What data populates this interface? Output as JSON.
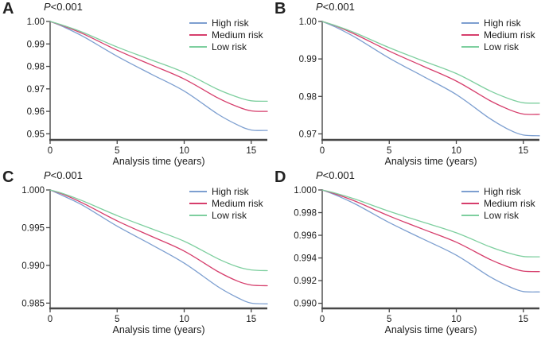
{
  "figure": {
    "background": "#ffffff",
    "text_color": "#1c1c1c",
    "axis_color": "#474747",
    "series_colors": {
      "high_risk": "#7d9fd0",
      "medium_risk": "#d63e6c",
      "low_risk": "#7ecf9f"
    }
  },
  "chart_data": [
    {
      "type": "line",
      "panel_label": "A",
      "pvalue_text": "P<0.001",
      "pvalue_italic": "P",
      "pvalue_rest": "<0.001",
      "xlabel": "Analysis time (years)",
      "legend_position": "top-right",
      "grid": false,
      "xlim": [
        0,
        16.2
      ],
      "ylim": [
        0.9473,
        1.0
      ],
      "xticks": [
        {
          "v": 0,
          "label": "0"
        },
        {
          "v": 5,
          "label": "5"
        },
        {
          "v": 10,
          "label": "10"
        },
        {
          "v": 15,
          "label": "15"
        }
      ],
      "yticks": [
        {
          "v": 1.0,
          "label": "1.00"
        },
        {
          "v": 0.99,
          "label": "0.99"
        },
        {
          "v": 0.98,
          "label": "0.98"
        },
        {
          "v": 0.97,
          "label": "0.97"
        },
        {
          "v": 0.96,
          "label": "0.96"
        },
        {
          "v": 0.95,
          "label": "0.95"
        }
      ],
      "x": [
        0,
        1,
        2.5,
        5,
        7.5,
        10,
        12.5,
        14,
        15,
        16.2
      ],
      "series": [
        {
          "name": "High risk",
          "color": "#7d9fd0",
          "y": [
            1.0,
            0.9976,
            0.9932,
            0.9845,
            0.9767,
            0.969,
            0.9588,
            0.9539,
            0.9517,
            0.9515
          ]
        },
        {
          "name": "Medium risk",
          "color": "#d63e6c",
          "y": [
            1.0,
            0.998,
            0.9944,
            0.9872,
            0.9808,
            0.9744,
            0.966,
            0.962,
            0.9602,
            0.96
          ]
        },
        {
          "name": "Low risk",
          "color": "#7ecf9f",
          "y": [
            1.0,
            0.9982,
            0.995,
            0.9886,
            0.983,
            0.9773,
            0.9698,
            0.9663,
            0.9647,
            0.9645
          ]
        }
      ]
    },
    {
      "type": "line",
      "panel_label": "B",
      "pvalue_text": "P<0.001",
      "pvalue_italic": "P",
      "pvalue_rest": "<0.001",
      "xlabel": "Analysis time (years)",
      "legend_position": "top-right",
      "grid": false,
      "xlim": [
        0,
        16.2
      ],
      "ylim": [
        0.9684,
        1.0
      ],
      "xticks": [
        {
          "v": 0,
          "label": "0"
        },
        {
          "v": 5,
          "label": "5"
        },
        {
          "v": 10,
          "label": "10"
        },
        {
          "v": 15,
          "label": "15"
        }
      ],
      "yticks": [
        {
          "v": 1.0,
          "label": "1.00"
        },
        {
          "v": 0.99,
          "label": "0.99"
        },
        {
          "v": 0.98,
          "label": "0.98"
        },
        {
          "v": 0.97,
          "label": "0.97"
        }
      ],
      "x": [
        0,
        1,
        2.5,
        5,
        7.5,
        10,
        12.5,
        14,
        15,
        16.2
      ],
      "series": [
        {
          "name": "High risk",
          "color": "#7d9fd0",
          "y": [
            1.0,
            0.9985,
            0.9957,
            0.9902,
            0.9854,
            0.9805,
            0.9741,
            0.971,
            0.9697,
            0.9695
          ]
        },
        {
          "name": "Medium risk",
          "color": "#d63e6c",
          "y": [
            1.0,
            0.9988,
            0.9965,
            0.9921,
            0.9881,
            0.9841,
            0.9789,
            0.9764,
            0.9753,
            0.9752
          ]
        },
        {
          "name": "Low risk",
          "color": "#7ecf9f",
          "y": [
            1.0,
            0.9989,
            0.9969,
            0.993,
            0.9895,
            0.9861,
            0.9815,
            0.9793,
            0.9783,
            0.9782
          ]
        }
      ]
    },
    {
      "type": "line",
      "panel_label": "C",
      "pvalue_text": "P<0.001",
      "pvalue_italic": "P",
      "pvalue_rest": "<0.001",
      "xlabel": "Analysis time (years)",
      "legend_position": "top-right",
      "grid": false,
      "xlim": [
        0,
        16.2
      ],
      "ylim": [
        0.9843,
        1.0
      ],
      "xticks": [
        {
          "v": 0,
          "label": "0"
        },
        {
          "v": 5,
          "label": "5"
        },
        {
          "v": 10,
          "label": "10"
        },
        {
          "v": 15,
          "label": "15"
        }
      ],
      "yticks": [
        {
          "v": 1.0,
          "label": "1.000"
        },
        {
          "v": 0.995,
          "label": "0.995"
        },
        {
          "v": 0.99,
          "label": "0.990"
        },
        {
          "v": 0.985,
          "label": "0.985"
        }
      ],
      "x": [
        0,
        1,
        2.5,
        5,
        7.5,
        10,
        12.5,
        14,
        15,
        16.2
      ],
      "series": [
        {
          "name": "High risk",
          "color": "#7d9fd0",
          "y": [
            1.0,
            0.9992,
            0.9979,
            0.9952,
            0.9928,
            0.9903,
            0.9872,
            0.9857,
            0.985,
            0.9849
          ]
        },
        {
          "name": "Medium risk",
          "color": "#d63e6c",
          "y": [
            1.0,
            0.9994,
            0.9982,
            0.9959,
            0.9939,
            0.9919,
            0.9892,
            0.9879,
            0.9874,
            0.9873
          ]
        },
        {
          "name": "Low risk",
          "color": "#7ecf9f",
          "y": [
            1.0,
            0.9995,
            0.9985,
            0.9966,
            0.9949,
            0.9932,
            0.9909,
            0.9898,
            0.9894,
            0.9893
          ]
        }
      ]
    },
    {
      "type": "line",
      "panel_label": "D",
      "pvalue_text": "P<0.001",
      "pvalue_italic": "P",
      "pvalue_rest": "<0.001",
      "xlabel": "Analysis time (years)",
      "legend_position": "top-right",
      "grid": false,
      "xlim": [
        0,
        16.2
      ],
      "ylim": [
        0.98955,
        1.0
      ],
      "xticks": [
        {
          "v": 0,
          "label": "0"
        },
        {
          "v": 5,
          "label": "5"
        },
        {
          "v": 10,
          "label": "10"
        },
        {
          "v": 15,
          "label": "15"
        }
      ],
      "yticks": [
        {
          "v": 1.0,
          "label": "1.000"
        },
        {
          "v": 0.998,
          "label": "0.998"
        },
        {
          "v": 0.996,
          "label": "0.996"
        },
        {
          "v": 0.994,
          "label": "0.994"
        },
        {
          "v": 0.992,
          "label": "0.992"
        },
        {
          "v": 0.99,
          "label": "0.990"
        }
      ],
      "x": [
        0,
        1,
        2.5,
        5,
        7.5,
        10,
        12.5,
        14,
        15,
        16.2
      ],
      "series": [
        {
          "name": "High risk",
          "color": "#7d9fd0",
          "y": [
            1.0,
            0.99955,
            0.99874,
            0.99712,
            0.99568,
            0.99424,
            0.99235,
            0.99145,
            0.99104,
            0.991
          ]
        },
        {
          "name": "Medium risk",
          "color": "#d63e6c",
          "y": [
            1.0,
            0.99964,
            0.99899,
            0.9977,
            0.99654,
            0.99539,
            0.99388,
            0.99316,
            0.99284,
            0.9928
          ]
        },
        {
          "name": "Low risk",
          "color": "#7ecf9f",
          "y": [
            1.0,
            0.99971,
            0.99917,
            0.99811,
            0.99717,
            0.99622,
            0.99499,
            0.9944,
            0.99413,
            0.9941
          ]
        }
      ]
    }
  ]
}
